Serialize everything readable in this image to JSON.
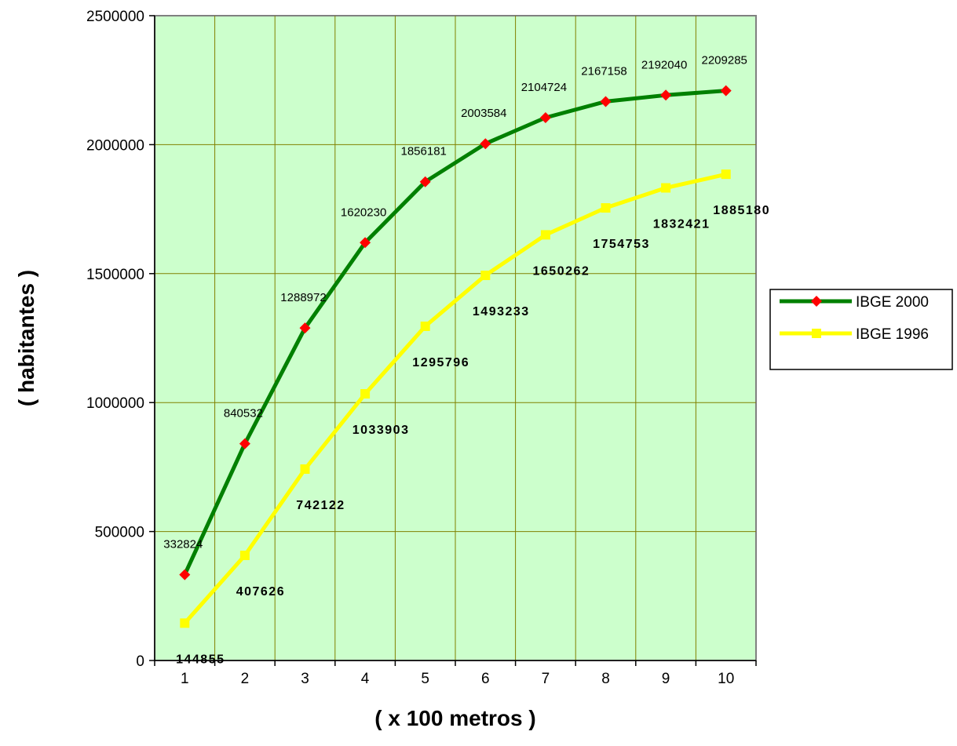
{
  "chart_data": {
    "type": "line",
    "title": "",
    "xlabel": "( x 100 metros )",
    "ylabel": "( habitantes )",
    "categories": [
      "1",
      "2",
      "3",
      "4",
      "5",
      "6",
      "7",
      "8",
      "9",
      "10"
    ],
    "yticks": [
      "0",
      "500000",
      "1000000",
      "1500000",
      "2000000",
      "2500000"
    ],
    "ylim": [
      0,
      2500000
    ],
    "grid": true,
    "legend_position": "right",
    "plot_background": "#ccffcc",
    "gridline_color": "#808000",
    "series": [
      {
        "name": "IBGE 2000",
        "color": "#008000",
        "marker": "diamond",
        "marker_color": "#ff0000",
        "values": [
          332824,
          840532,
          1288972,
          1620230,
          1856181,
          2003584,
          2104724,
          2167158,
          2192040,
          2209285
        ],
        "data_labels": [
          "332824",
          "840532",
          "1288972",
          "1620230",
          "1856181",
          "2003584",
          "2104724",
          "2167158",
          "2192040",
          "2209285"
        ]
      },
      {
        "name": "IBGE 1996",
        "color": "#ffff00",
        "marker": "square",
        "marker_color": "#ffff00",
        "values": [
          144855,
          407626,
          742122,
          1033903,
          1295796,
          1493233,
          1650262,
          1754753,
          1832421,
          1885180
        ],
        "data_labels": [
          "144855",
          "407626",
          "742122",
          "1033903",
          "1295796",
          "1493233",
          "1650262",
          "1754753",
          "1832421",
          "1885180"
        ]
      }
    ]
  }
}
